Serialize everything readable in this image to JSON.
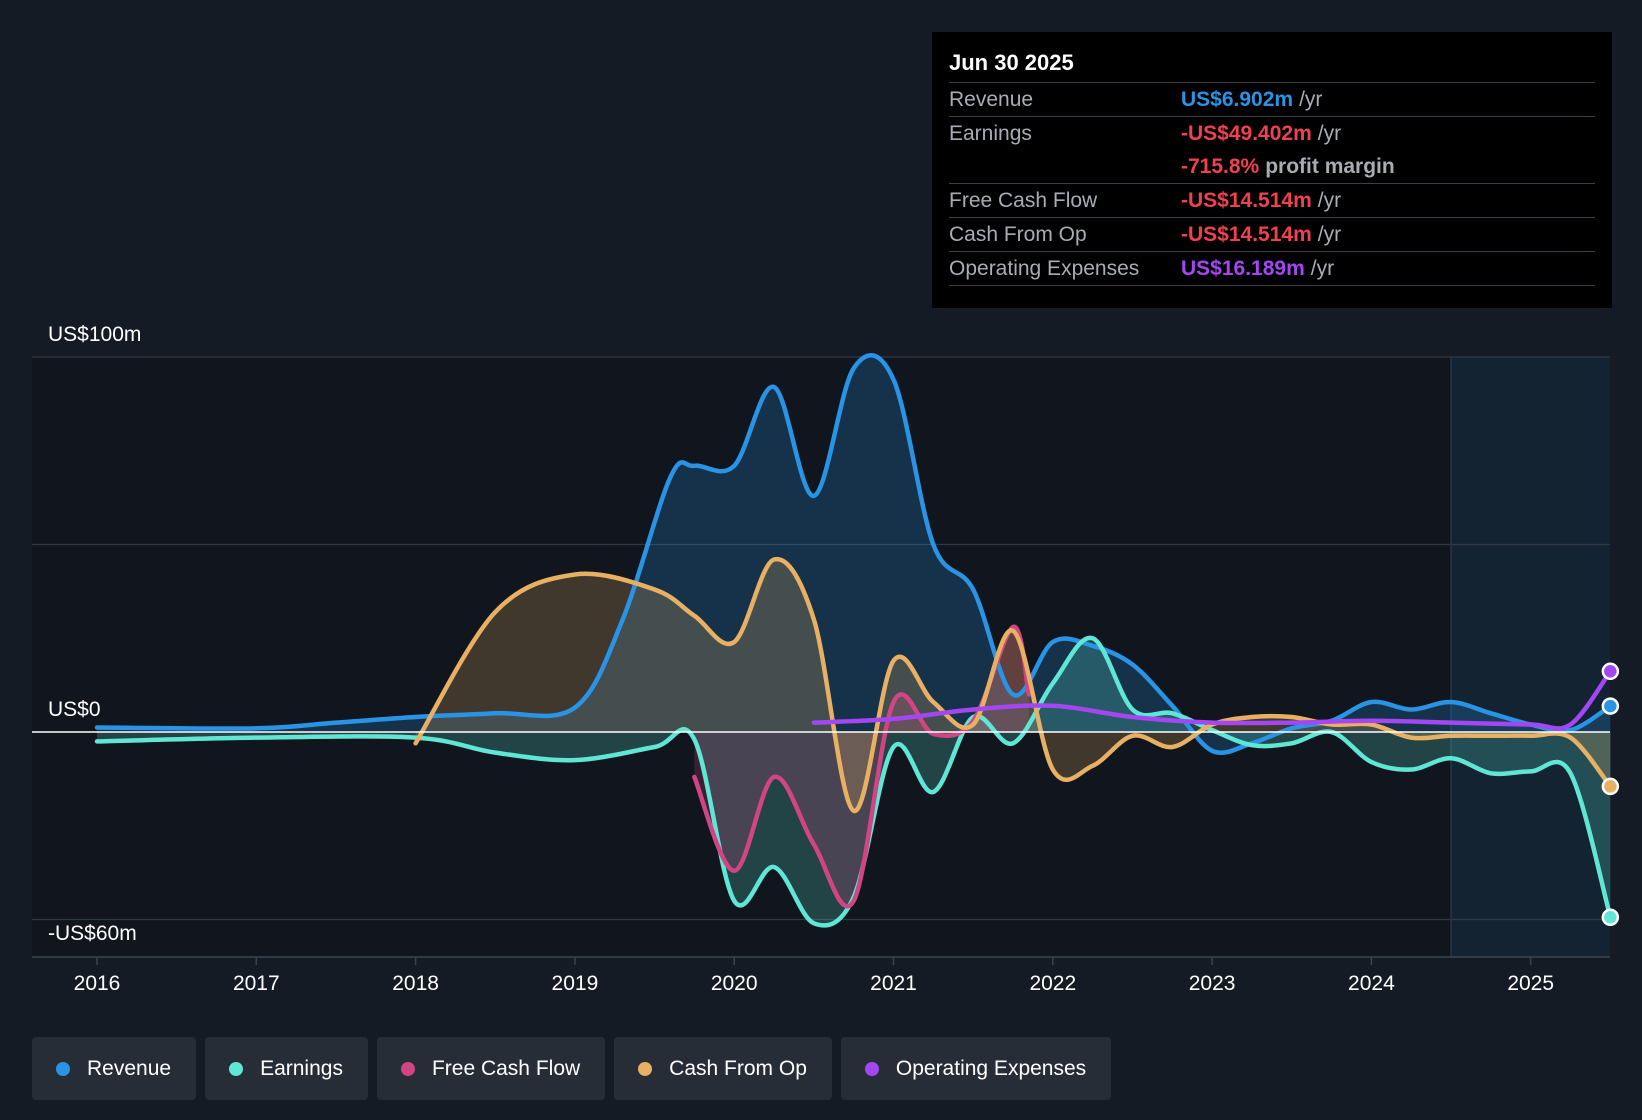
{
  "tooltip": {
    "date": "Jun 30 2025",
    "rows": [
      {
        "label": "Revenue",
        "value": "US$6.902m",
        "unit": "/yr",
        "color": "#2994e6"
      },
      {
        "label": "Earnings",
        "value": "-US$49.402m",
        "unit": "/yr",
        "color": "#f0414f"
      },
      {
        "label": "",
        "value": "-715.8%",
        "unit": "profit margin",
        "color": "#f0414f"
      },
      {
        "label": "Free Cash Flow",
        "value": "-US$14.514m",
        "unit": "/yr",
        "color": "#f0414f"
      },
      {
        "label": "Cash From Op",
        "value": "-US$14.514m",
        "unit": "/yr",
        "color": "#f0414f"
      },
      {
        "label": "Operating Expenses",
        "value": "US$16.189m",
        "unit": "/yr",
        "color": "#a347f2"
      }
    ]
  },
  "legend": [
    {
      "label": "Revenue",
      "color": "#2994e6"
    },
    {
      "label": "Earnings",
      "color": "#5fe6d4"
    },
    {
      "label": "Free Cash Flow",
      "color": "#d14585"
    },
    {
      "label": "Cash From Op",
      "color": "#e8b062"
    },
    {
      "label": "Operating Expenses",
      "color": "#a347f2"
    }
  ],
  "chart_data": {
    "type": "area",
    "y_tick_labels": [
      "US$100m",
      "US$0",
      "-US$60m"
    ],
    "ylim": [
      -60,
      100
    ],
    "xlim": [
      2015.6,
      2025.5
    ],
    "x_tick_labels": [
      "2016",
      "2017",
      "2018",
      "2019",
      "2020",
      "2021",
      "2022",
      "2023",
      "2024",
      "2025"
    ],
    "forecast_shading_start": 2024.5,
    "grid": true,
    "legend_position": "bottom-left",
    "series": [
      {
        "name": "Revenue",
        "color": "#2994e6",
        "fill": true,
        "points": [
          [
            2016.0,
            1.2
          ],
          [
            2017.0,
            1.0
          ],
          [
            2017.5,
            2.5
          ],
          [
            2018.0,
            4.0
          ],
          [
            2018.5,
            5.0
          ],
          [
            2019.0,
            6.5
          ],
          [
            2019.3,
            30
          ],
          [
            2019.6,
            68
          ],
          [
            2019.75,
            71
          ],
          [
            2020.0,
            71
          ],
          [
            2020.25,
            92
          ],
          [
            2020.5,
            63
          ],
          [
            2020.75,
            97
          ],
          [
            2021.0,
            94
          ],
          [
            2021.25,
            50
          ],
          [
            2021.5,
            38
          ],
          [
            2021.75,
            10
          ],
          [
            2022.0,
            24
          ],
          [
            2022.25,
            23
          ],
          [
            2022.5,
            18
          ],
          [
            2022.75,
            7
          ],
          [
            2023.0,
            -5
          ],
          [
            2023.25,
            -3
          ],
          [
            2023.5,
            1
          ],
          [
            2023.75,
            3
          ],
          [
            2024.0,
            8
          ],
          [
            2024.25,
            6
          ],
          [
            2024.5,
            8
          ],
          [
            2024.75,
            5
          ],
          [
            2025.0,
            2
          ],
          [
            2025.25,
            0.5
          ],
          [
            2025.5,
            6.902
          ]
        ]
      },
      {
        "name": "Earnings",
        "color": "#5fe6d4",
        "fill": true,
        "points": [
          [
            2016.0,
            -2.5
          ],
          [
            2017.0,
            -1.5
          ],
          [
            2018.0,
            -1.5
          ],
          [
            2018.5,
            -5.5
          ],
          [
            2019.0,
            -7.5
          ],
          [
            2019.5,
            -4
          ],
          [
            2019.75,
            -2
          ],
          [
            2020.0,
            -45
          ],
          [
            2020.25,
            -36
          ],
          [
            2020.5,
            -51
          ],
          [
            2020.75,
            -44
          ],
          [
            2021.0,
            -4
          ],
          [
            2021.25,
            -16
          ],
          [
            2021.5,
            4
          ],
          [
            2021.75,
            -3
          ],
          [
            2022.0,
            13
          ],
          [
            2022.25,
            25
          ],
          [
            2022.5,
            6
          ],
          [
            2022.75,
            5
          ],
          [
            2023.0,
            0.5
          ],
          [
            2023.25,
            -3.5
          ],
          [
            2023.5,
            -3
          ],
          [
            2023.75,
            0
          ],
          [
            2024.0,
            -8
          ],
          [
            2024.25,
            -10
          ],
          [
            2024.5,
            -7
          ],
          [
            2024.75,
            -11
          ],
          [
            2025.0,
            -10.5
          ],
          [
            2025.25,
            -11
          ],
          [
            2025.5,
            -49.402
          ]
        ]
      },
      {
        "name": "Free Cash Flow",
        "color": "#d14585",
        "fill": true,
        "points": [
          [
            2019.75,
            -12
          ],
          [
            2020.0,
            -37
          ],
          [
            2020.25,
            -12
          ],
          [
            2020.5,
            -30
          ],
          [
            2020.75,
            -45
          ],
          [
            2021.0,
            8
          ],
          [
            2021.25,
            -0.5
          ],
          [
            2021.5,
            3
          ],
          [
            2021.75,
            28
          ],
          [
            2021.85,
            10
          ]
        ]
      },
      {
        "name": "Cash From Op",
        "color": "#e8b062",
        "fill": true,
        "points": [
          [
            2018.0,
            -3
          ],
          [
            2018.5,
            32
          ],
          [
            2019.0,
            42
          ],
          [
            2019.5,
            38
          ],
          [
            2019.75,
            31
          ],
          [
            2020.0,
            24
          ],
          [
            2020.25,
            46
          ],
          [
            2020.5,
            30
          ],
          [
            2020.75,
            -21
          ],
          [
            2021.0,
            19
          ],
          [
            2021.25,
            8
          ],
          [
            2021.5,
            2
          ],
          [
            2021.75,
            27
          ],
          [
            2022.0,
            -10
          ],
          [
            2022.25,
            -9
          ],
          [
            2022.5,
            -1
          ],
          [
            2022.75,
            -4
          ],
          [
            2023.0,
            2
          ],
          [
            2023.25,
            4
          ],
          [
            2023.5,
            4
          ],
          [
            2023.75,
            2
          ],
          [
            2024.0,
            2
          ],
          [
            2024.25,
            -1.5
          ],
          [
            2024.5,
            -1
          ],
          [
            2024.75,
            -1
          ],
          [
            2025.0,
            -1
          ],
          [
            2025.25,
            -1.5
          ],
          [
            2025.5,
            -14.514
          ]
        ]
      },
      {
        "name": "Operating Expenses",
        "color": "#a347f2",
        "fill": false,
        "points": [
          [
            2020.5,
            2.5
          ],
          [
            2021.0,
            3.5
          ],
          [
            2021.5,
            6
          ],
          [
            2022.0,
            7
          ],
          [
            2022.5,
            4
          ],
          [
            2023.0,
            2.5
          ],
          [
            2023.5,
            2.5
          ],
          [
            2024.0,
            3
          ],
          [
            2024.5,
            2.5
          ],
          [
            2025.0,
            2
          ],
          [
            2025.25,
            2
          ],
          [
            2025.5,
            16.189
          ]
        ]
      }
    ]
  }
}
